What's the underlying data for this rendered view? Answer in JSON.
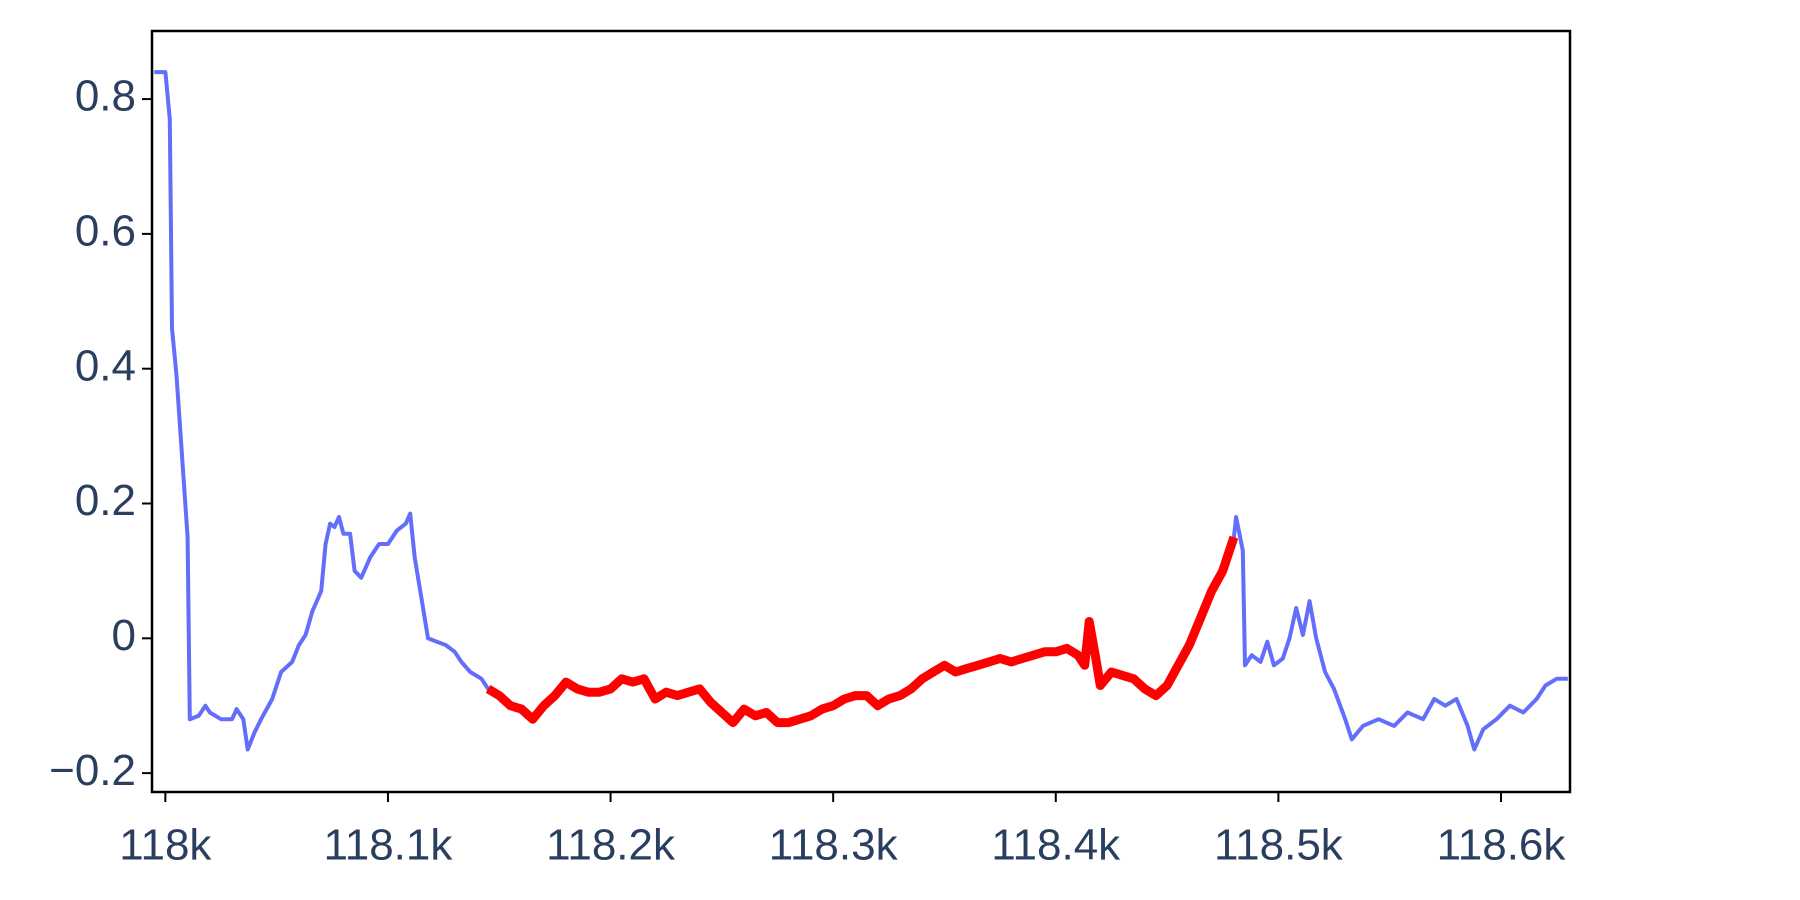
{
  "chart_data": {
    "type": "line",
    "xlim": [
      117994,
      118631
    ],
    "ylim": [
      -0.228,
      0.901
    ],
    "xticks": [
      {
        "value": 118000,
        "label": "118k"
      },
      {
        "value": 118100,
        "label": "118.1k"
      },
      {
        "value": 118200,
        "label": "118.2k"
      },
      {
        "value": 118300,
        "label": "118.3k"
      },
      {
        "value": 118400,
        "label": "118.4k"
      },
      {
        "value": 118500,
        "label": "118.5k"
      },
      {
        "value": 118600,
        "label": "118.6k"
      }
    ],
    "yticks": [
      {
        "value": -0.2,
        "label": "−0.2"
      },
      0,
      0.2,
      0.4,
      0.6,
      0.8
    ],
    "series": [
      {
        "color": "#636efa",
        "width": 4,
        "x": [
          117995,
          118000,
          118002,
          118003,
          118005,
          118010,
          118011,
          118015,
          118018,
          118020,
          118025,
          118030,
          118032,
          118035,
          118037,
          118040,
          118043,
          118048,
          118052,
          118057,
          118060,
          118063,
          118066,
          118070,
          118072,
          118074,
          118076,
          118078,
          118080,
          118083,
          118085,
          118088,
          118092,
          118096,
          118100,
          118104,
          118108,
          118110,
          118112,
          118115,
          118118,
          118122,
          118126,
          118130,
          118133,
          118137,
          118142,
          118145,
          118150,
          118155,
          118160,
          118165,
          118170,
          118175,
          118180,
          118185,
          118190,
          118195,
          118200,
          118205,
          118210,
          118215,
          118220,
          118225,
          118230,
          118235,
          118240,
          118245,
          118250,
          118255,
          118260,
          118265,
          118270,
          118275,
          118280,
          118285,
          118290,
          118295,
          118300,
          118305,
          118310,
          118315,
          118320,
          118325,
          118330,
          118335,
          118340,
          118345,
          118350,
          118355,
          118360,
          118365,
          118370,
          118375,
          118380,
          118385,
          118390,
          118395,
          118400,
          118405,
          118410,
          118413,
          118415,
          118418,
          118420,
          118425,
          118430,
          118435,
          118440,
          118445,
          118450,
          118455,
          118460,
          118465,
          118470,
          118475,
          118480,
          118481,
          118484,
          118485,
          118488,
          118492,
          118495,
          118498,
          118502,
          118505,
          118508,
          118511,
          118514,
          118517,
          118521,
          118525,
          118530,
          118533,
          118538,
          118545,
          118552,
          118558,
          118565,
          118570,
          118575,
          118580,
          118585,
          118588,
          118592,
          118598,
          118604,
          118610,
          118616,
          118620,
          118625,
          118630
        ],
        "values": [
          0.84,
          0.84,
          0.77,
          0.46,
          0.39,
          0.15,
          -0.12,
          -0.115,
          -0.1,
          -0.11,
          -0.12,
          -0.12,
          -0.105,
          -0.12,
          -0.165,
          -0.14,
          -0.12,
          -0.09,
          -0.05,
          -0.035,
          -0.01,
          0.005,
          0.04,
          0.07,
          0.14,
          0.17,
          0.165,
          0.18,
          0.155,
          0.155,
          0.1,
          0.09,
          0.12,
          0.14,
          0.14,
          0.16,
          0.17,
          0.185,
          0.12,
          0.06,
          0.0,
          -0.005,
          -0.01,
          -0.02,
          -0.035,
          -0.05,
          -0.06,
          -0.075,
          -0.085,
          -0.1,
          -0.105,
          -0.12,
          -0.1,
          -0.085,
          -0.065,
          -0.075,
          -0.08,
          -0.08,
          -0.075,
          -0.06,
          -0.065,
          -0.06,
          -0.09,
          -0.08,
          -0.085,
          -0.08,
          -0.075,
          -0.095,
          -0.11,
          -0.125,
          -0.105,
          -0.115,
          -0.11,
          -0.125,
          -0.125,
          -0.12,
          -0.115,
          -0.105,
          -0.1,
          -0.09,
          -0.085,
          -0.085,
          -0.1,
          -0.09,
          -0.085,
          -0.075,
          -0.06,
          -0.05,
          -0.04,
          -0.05,
          -0.045,
          -0.04,
          -0.035,
          -0.03,
          -0.035,
          -0.03,
          -0.025,
          -0.02,
          -0.02,
          -0.015,
          -0.025,
          -0.04,
          0.025,
          -0.03,
          -0.07,
          -0.05,
          -0.055,
          -0.06,
          -0.075,
          -0.085,
          -0.07,
          -0.04,
          -0.01,
          0.03,
          0.07,
          0.1,
          0.15,
          0.18,
          0.13,
          -0.04,
          -0.025,
          -0.035,
          -0.005,
          -0.04,
          -0.03,
          0.0,
          0.045,
          0.005,
          0.055,
          0.0,
          -0.05,
          -0.075,
          -0.12,
          -0.15,
          -0.13,
          -0.12,
          -0.13,
          -0.11,
          -0.12,
          -0.09,
          -0.1,
          -0.09,
          -0.13,
          -0.165,
          -0.135,
          -0.12,
          -0.1,
          -0.11,
          -0.09,
          -0.07,
          -0.06,
          -0.06
        ]
      },
      {
        "color": "#ff0000",
        "width": 9,
        "x": [
          118145,
          118150,
          118155,
          118160,
          118165,
          118170,
          118175,
          118180,
          118185,
          118190,
          118195,
          118200,
          118205,
          118210,
          118215,
          118220,
          118225,
          118230,
          118235,
          118240,
          118245,
          118250,
          118255,
          118260,
          118265,
          118270,
          118275,
          118280,
          118285,
          118290,
          118295,
          118300,
          118305,
          118310,
          118315,
          118320,
          118325,
          118330,
          118335,
          118340,
          118345,
          118350,
          118355,
          118360,
          118365,
          118370,
          118375,
          118380,
          118385,
          118390,
          118395,
          118400,
          118405,
          118410,
          118413,
          118415,
          118418,
          118420,
          118425,
          118430,
          118435,
          118440,
          118445,
          118450,
          118455,
          118460,
          118465,
          118470,
          118475,
          118480
        ],
        "values": [
          -0.075,
          -0.085,
          -0.1,
          -0.105,
          -0.12,
          -0.1,
          -0.085,
          -0.065,
          -0.075,
          -0.08,
          -0.08,
          -0.075,
          -0.06,
          -0.065,
          -0.06,
          -0.09,
          -0.08,
          -0.085,
          -0.08,
          -0.075,
          -0.095,
          -0.11,
          -0.125,
          -0.105,
          -0.115,
          -0.11,
          -0.125,
          -0.125,
          -0.12,
          -0.115,
          -0.105,
          -0.1,
          -0.09,
          -0.085,
          -0.085,
          -0.1,
          -0.09,
          -0.085,
          -0.075,
          -0.06,
          -0.05,
          -0.04,
          -0.05,
          -0.045,
          -0.04,
          -0.035,
          -0.03,
          -0.035,
          -0.03,
          -0.025,
          -0.02,
          -0.02,
          -0.015,
          -0.025,
          -0.04,
          0.025,
          -0.03,
          -0.07,
          -0.05,
          -0.055,
          -0.06,
          -0.075,
          -0.085,
          -0.07,
          -0.04,
          -0.01,
          0.03,
          0.07,
          0.1,
          0.15
        ]
      }
    ]
  }
}
